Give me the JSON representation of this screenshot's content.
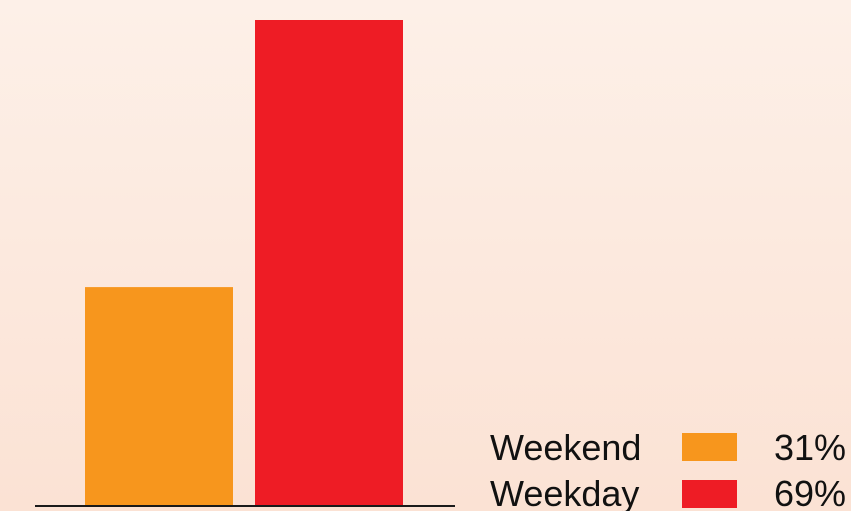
{
  "chart_data": {
    "type": "bar",
    "categories": [
      "Weekend",
      "Weekday"
    ],
    "values": [
      31,
      69
    ],
    "colors": [
      "#f7961d",
      "#ee1c25"
    ],
    "legend": [
      {
        "label": "Weekend",
        "value_label": "31%",
        "color": "#f7961d"
      },
      {
        "label": "Weekday",
        "value_label": "69%",
        "color": "#ee1c25"
      }
    ],
    "legend_position": "bottom-right",
    "ylim": [
      0,
      69
    ],
    "grid": false,
    "title": "",
    "xlabel": "",
    "ylabel": ""
  }
}
